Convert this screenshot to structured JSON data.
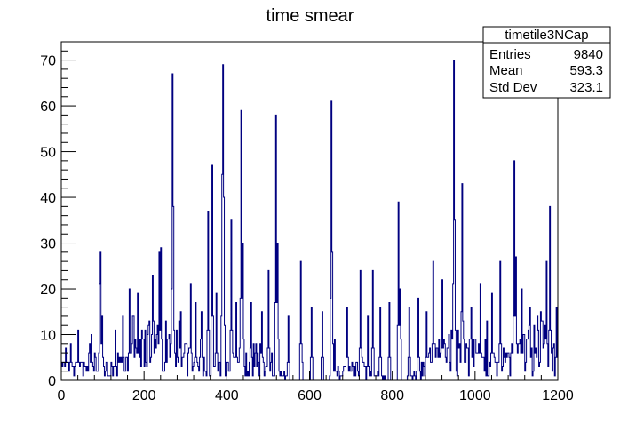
{
  "chart_data": {
    "type": "histogram",
    "title": "time smear",
    "xlabel": "",
    "ylabel": "",
    "xlim": [
      0,
      1200
    ],
    "ylim": [
      0,
      74
    ],
    "x_ticks": [
      0,
      200,
      400,
      600,
      800,
      1000,
      1200
    ],
    "y_ticks": [
      0,
      10,
      20,
      30,
      40,
      50,
      60,
      70
    ],
    "series_color": "#000080",
    "bin_width": 2,
    "stats": {
      "name": "timetile3NCap",
      "rows": [
        {
          "label": "Entries",
          "value": "9840"
        },
        {
          "label": "Mean",
          "value": "593.3"
        },
        {
          "label": "Std Dev",
          "value": "323.1"
        }
      ]
    },
    "peaks": [
      {
        "x": 2,
        "y": 3
      },
      {
        "x": 10,
        "y": 7
      },
      {
        "x": 16,
        "y": 4
      },
      {
        "x": 22,
        "y": 8
      },
      {
        "x": 40,
        "y": 11
      },
      {
        "x": 62,
        "y": 3
      },
      {
        "x": 80,
        "y": 6
      },
      {
        "x": 93,
        "y": 21
      },
      {
        "x": 95,
        "y": 28
      },
      {
        "x": 98,
        "y": 14
      },
      {
        "x": 130,
        "y": 11
      },
      {
        "x": 148,
        "y": 14
      },
      {
        "x": 165,
        "y": 20
      },
      {
        "x": 172,
        "y": 14
      },
      {
        "x": 185,
        "y": 19
      },
      {
        "x": 195,
        "y": 11
      },
      {
        "x": 212,
        "y": 13
      },
      {
        "x": 220,
        "y": 23
      },
      {
        "x": 236,
        "y": 28
      },
      {
        "x": 240,
        "y": 29
      },
      {
        "x": 253,
        "y": 13
      },
      {
        "x": 268,
        "y": 67
      },
      {
        "x": 270,
        "y": 38
      },
      {
        "x": 285,
        "y": 13
      },
      {
        "x": 300,
        "y": 8
      },
      {
        "x": 312,
        "y": 21
      },
      {
        "x": 325,
        "y": 17
      },
      {
        "x": 338,
        "y": 15
      },
      {
        "x": 355,
        "y": 37
      },
      {
        "x": 364,
        "y": 47
      },
      {
        "x": 374,
        "y": 19
      },
      {
        "x": 388,
        "y": 45
      },
      {
        "x": 390,
        "y": 69
      },
      {
        "x": 393,
        "y": 40
      },
      {
        "x": 410,
        "y": 35
      },
      {
        "x": 422,
        "y": 17
      },
      {
        "x": 435,
        "y": 59
      },
      {
        "x": 438,
        "y": 30
      },
      {
        "x": 458,
        "y": 17
      },
      {
        "x": 485,
        "y": 15
      },
      {
        "x": 500,
        "y": 24
      },
      {
        "x": 519,
        "y": 58
      },
      {
        "x": 522,
        "y": 30
      },
      {
        "x": 548,
        "y": 14
      },
      {
        "x": 578,
        "y": 26
      },
      {
        "x": 604,
        "y": 16
      },
      {
        "x": 630,
        "y": 15
      },
      {
        "x": 652,
        "y": 61
      },
      {
        "x": 655,
        "y": 28
      },
      {
        "x": 690,
        "y": 16
      },
      {
        "x": 722,
        "y": 24
      },
      {
        "x": 752,
        "y": 24
      },
      {
        "x": 770,
        "y": 16
      },
      {
        "x": 792,
        "y": 17
      },
      {
        "x": 815,
        "y": 39
      },
      {
        "x": 818,
        "y": 20
      },
      {
        "x": 840,
        "y": 16
      },
      {
        "x": 862,
        "y": 18
      },
      {
        "x": 882,
        "y": 15
      },
      {
        "x": 898,
        "y": 26
      },
      {
        "x": 920,
        "y": 22
      },
      {
        "x": 948,
        "y": 70
      },
      {
        "x": 950,
        "y": 35
      },
      {
        "x": 968,
        "y": 43
      },
      {
        "x": 990,
        "y": 16
      },
      {
        "x": 1012,
        "y": 21
      },
      {
        "x": 1040,
        "y": 19
      },
      {
        "x": 1060,
        "y": 26
      },
      {
        "x": 1095,
        "y": 48
      },
      {
        "x": 1098,
        "y": 27
      },
      {
        "x": 1112,
        "y": 20
      },
      {
        "x": 1132,
        "y": 16
      },
      {
        "x": 1150,
        "y": 14
      },
      {
        "x": 1172,
        "y": 26
      },
      {
        "x": 1180,
        "y": 38
      },
      {
        "x": 1196,
        "y": 16
      }
    ]
  }
}
